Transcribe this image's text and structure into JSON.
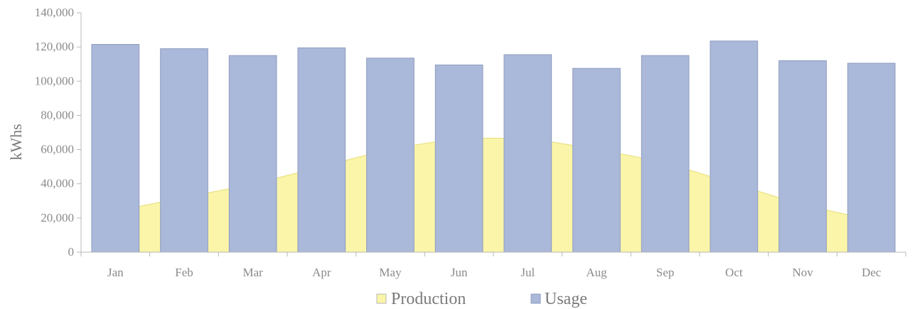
{
  "chart_data": {
    "type": "bar",
    "categories": [
      "Jan",
      "Feb",
      "Mar",
      "Apr",
      "May",
      "Jun",
      "Jul",
      "Aug",
      "Sep",
      "Oct",
      "Nov",
      "Dec"
    ],
    "series": [
      {
        "name": "Usage",
        "type": "bar",
        "color": "#aab8d9",
        "values": [
          121500,
          119000,
          115000,
          119500,
          113500,
          109500,
          115500,
          107500,
          115000,
          123500,
          112000,
          110500
        ]
      },
      {
        "name": "Production",
        "type": "area",
        "color": "#faf5a8",
        "values": [
          24000,
          32000,
          40000,
          50000,
          60000,
          66000,
          66000,
          60000,
          52000,
          40000,
          28000,
          19000
        ]
      }
    ],
    "ylabel": "kWhs",
    "ylim": [
      0,
      140000
    ],
    "yticks": [
      0,
      20000,
      40000,
      60000,
      80000,
      100000,
      120000,
      140000
    ],
    "ytick_labels": [
      "0",
      "20,000",
      "40,000",
      "60,000",
      "80,000",
      "100,000",
      "120,000",
      "140,000"
    ],
    "grid": false,
    "legend": {
      "position": "bottom",
      "entries": [
        "Production",
        "Usage"
      ]
    }
  }
}
